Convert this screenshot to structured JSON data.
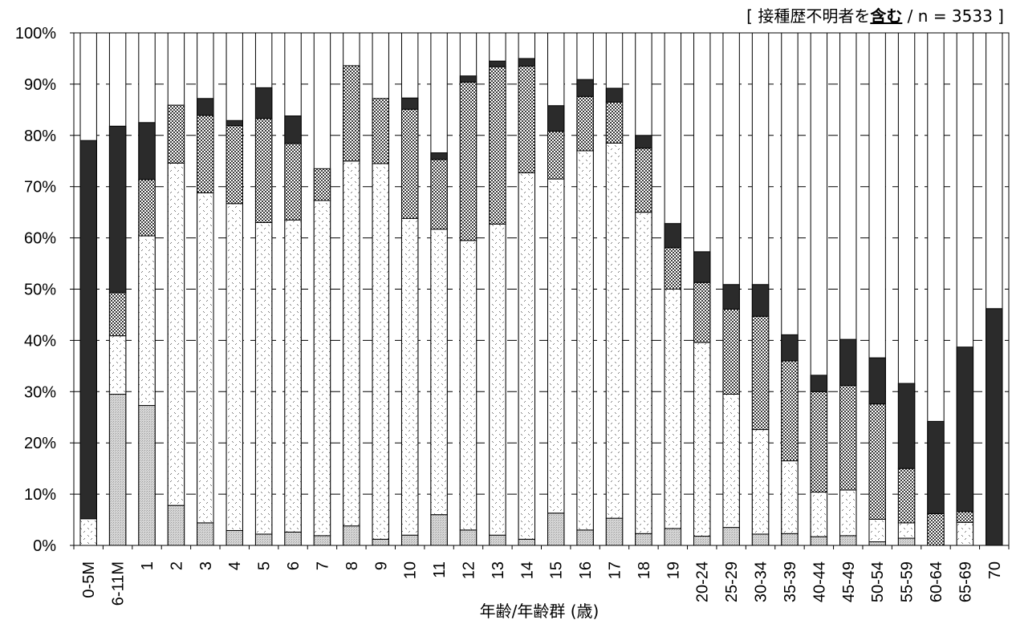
{
  "header": {
    "prefix": "[ 接種歴不明者を",
    "emphasis": "含む",
    "suffix": " / n = 3533 ]"
  },
  "chart_data": {
    "type": "bar",
    "stacked": true,
    "xlabel": "年齢/年齢群 (歳)",
    "ylabel": "",
    "ylim": [
      0,
      100
    ],
    "yticks": [
      "0%",
      "10%",
      "20%",
      "30%",
      "40%",
      "50%",
      "60%",
      "70%",
      "80%",
      "90%",
      "100%"
    ],
    "grid": "horizontal dashed",
    "categories": [
      "0-5M",
      "6-11M",
      "1",
      "2",
      "3",
      "4",
      "5",
      "6",
      "7",
      "8",
      "9",
      "10",
      "11",
      "12",
      "13",
      "14",
      "15",
      "16",
      "17",
      "18",
      "19",
      "20-24",
      "25-29",
      "30-34",
      "35-39",
      "40-44",
      "45-49",
      "50-54",
      "55-59",
      "60-64",
      "65-69",
      "70"
    ],
    "series": [
      {
        "fill": "light-grey-dots",
        "values": [
          0,
          29.5,
          27.3,
          7.8,
          4.4,
          2.9,
          2.2,
          2.6,
          1.9,
          3.8,
          1.2,
          2.0,
          6.0,
          3.0,
          2.0,
          1.2,
          6.3,
          3.0,
          5.3,
          2.3,
          3.3,
          1.8,
          3.5,
          2.2,
          2.3,
          1.7,
          1.9,
          0.7,
          1.4,
          0,
          0,
          0
        ]
      },
      {
        "fill": "sparse-dots",
        "values": [
          5.2,
          11.4,
          33.1,
          66.8,
          64.4,
          63.8,
          60.8,
          60.9,
          65.4,
          71.2,
          73.3,
          61.8,
          55.7,
          56.5,
          60.7,
          71.5,
          65.2,
          74.0,
          73.2,
          62.7,
          46.7,
          37.8,
          26.0,
          20.4,
          14.2,
          8.7,
          8.9,
          4.4,
          3.0,
          0,
          4.5,
          0
        ]
      },
      {
        "fill": "checker",
        "values": [
          0,
          8.4,
          11.0,
          11.3,
          15.1,
          15.2,
          20.3,
          14.9,
          6.2,
          18.6,
          12.7,
          21.3,
          13.6,
          30.9,
          30.7,
          20.8,
          9.3,
          10.6,
          8.0,
          12.5,
          8.1,
          11.7,
          16.6,
          22.1,
          19.5,
          19.6,
          20.4,
          22.5,
          10.6,
          6.2,
          2.1,
          0
        ]
      },
      {
        "fill": "dark",
        "values": [
          73.8,
          32.5,
          11.1,
          0,
          3.3,
          1.0,
          6.0,
          5.4,
          0,
          0,
          0,
          2.2,
          1.3,
          1.2,
          1.1,
          1.5,
          5.0,
          3.3,
          2.7,
          2.5,
          4.7,
          6.0,
          4.8,
          6.2,
          5.1,
          3.2,
          9.0,
          9.0,
          16.6,
          18.0,
          32.1,
          46.2
        ]
      }
    ]
  }
}
